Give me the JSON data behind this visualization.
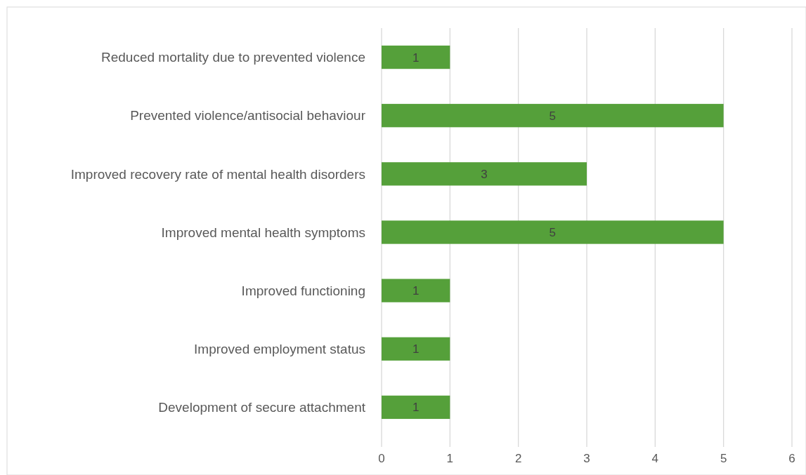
{
  "chart_data": {
    "type": "bar",
    "orientation": "horizontal",
    "categories": [
      "Reduced mortality due to prevented violence",
      "Prevented violence/antisocial behaviour",
      "Improved recovery rate of mental health disorders",
      "Improved mental health symptoms",
      "Improved functioning",
      "Improved employment status",
      "Development of secure attachment"
    ],
    "values": [
      1,
      5,
      3,
      5,
      1,
      1,
      1
    ],
    "color": "#55a03a",
    "xlim": [
      0,
      6
    ],
    "xticks": [
      0,
      1,
      2,
      3,
      4,
      5,
      6
    ],
    "grid": "x",
    "data_labels": true
  }
}
